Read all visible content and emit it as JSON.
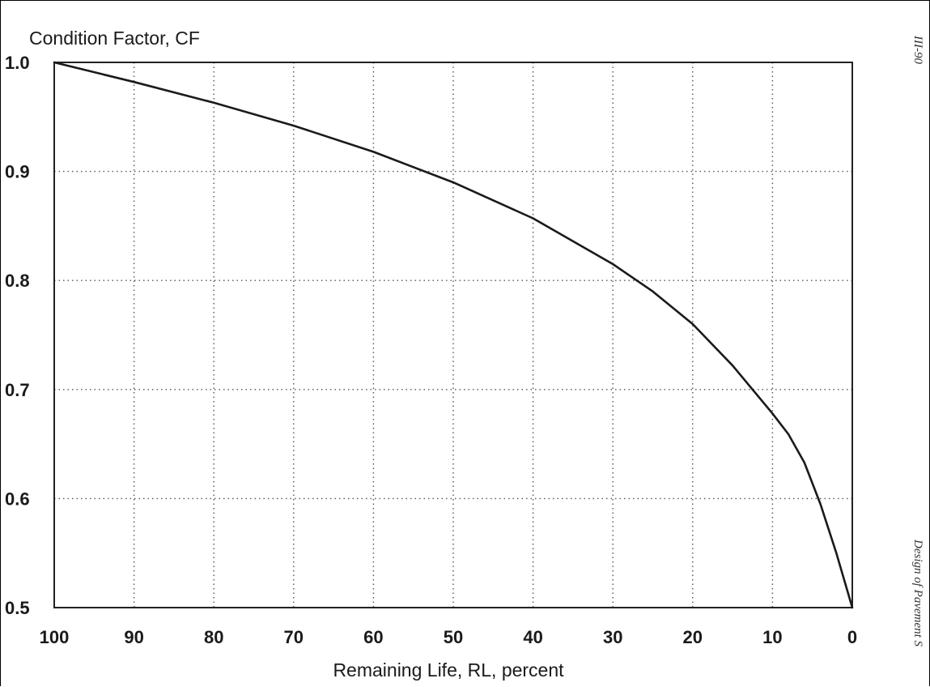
{
  "page": {
    "page_number": "III-90",
    "side_title": "Design of Pavement S"
  },
  "chart_data": {
    "type": "line",
    "title": "",
    "ylabel": "Condition Factor, CF",
    "xlabel": "Remaining Life, RL, percent",
    "xlim": [
      100,
      0
    ],
    "ylim": [
      0.5,
      1.0
    ],
    "x_reversed": true,
    "x_ticks": [
      100,
      90,
      80,
      70,
      60,
      50,
      40,
      30,
      20,
      10,
      0
    ],
    "x_tick_labels": [
      "100",
      "90",
      "80",
      "70",
      "60",
      "50",
      "40",
      "30",
      "20",
      "10",
      "0"
    ],
    "y_ticks": [
      0.5,
      0.6,
      0.7,
      0.8,
      0.9,
      1.0
    ],
    "y_tick_labels": [
      "0.5",
      "0.6",
      "0.7",
      "0.8",
      "0.9",
      "1.0"
    ],
    "grid": true,
    "grid_style": "dotted",
    "colors": {
      "line": "#1a1a1a",
      "grid": "#555555",
      "frame": "#222222"
    },
    "series": [
      {
        "x": [
          100,
          90,
          80,
          70,
          60,
          50,
          40,
          30,
          25,
          20,
          15,
          10,
          8,
          6,
          4,
          2,
          0
        ],
        "y": [
          1.0,
          0.982,
          0.963,
          0.942,
          0.918,
          0.89,
          0.857,
          0.815,
          0.79,
          0.76,
          0.722,
          0.678,
          0.659,
          0.633,
          0.595,
          0.55,
          0.5
        ]
      }
    ]
  }
}
